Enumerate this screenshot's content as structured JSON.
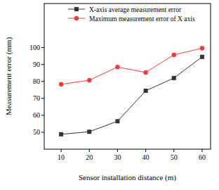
{
  "chart_data": {
    "type": "line",
    "x_label": "Sensor installation distance (m)",
    "y_label": "Measurement error (mm)",
    "x": [
      10,
      20,
      30,
      40,
      50,
      60
    ],
    "series": [
      {
        "name": "X-axis average measurement error",
        "color": "#333333",
        "marker": "square",
        "line_style": "solid",
        "values": [
          48.8,
          50.3,
          56.5,
          74.5,
          82.0,
          94.5
        ]
      },
      {
        "name": "Maximum measurement error of X axis",
        "color": "#f03c3c",
        "marker": "circle",
        "line_style": "solid",
        "values": [
          78.3,
          80.7,
          88.5,
          85.3,
          95.7,
          99.6
        ]
      }
    ],
    "xlim": [
      4,
      63
    ],
    "xticks": [
      10,
      20,
      30,
      40,
      50,
      60
    ],
    "ylim": [
      40,
      126
    ],
    "yticks": [
      50,
      60,
      70,
      80,
      90,
      100
    ],
    "grid": false,
    "legend": "upper left"
  }
}
